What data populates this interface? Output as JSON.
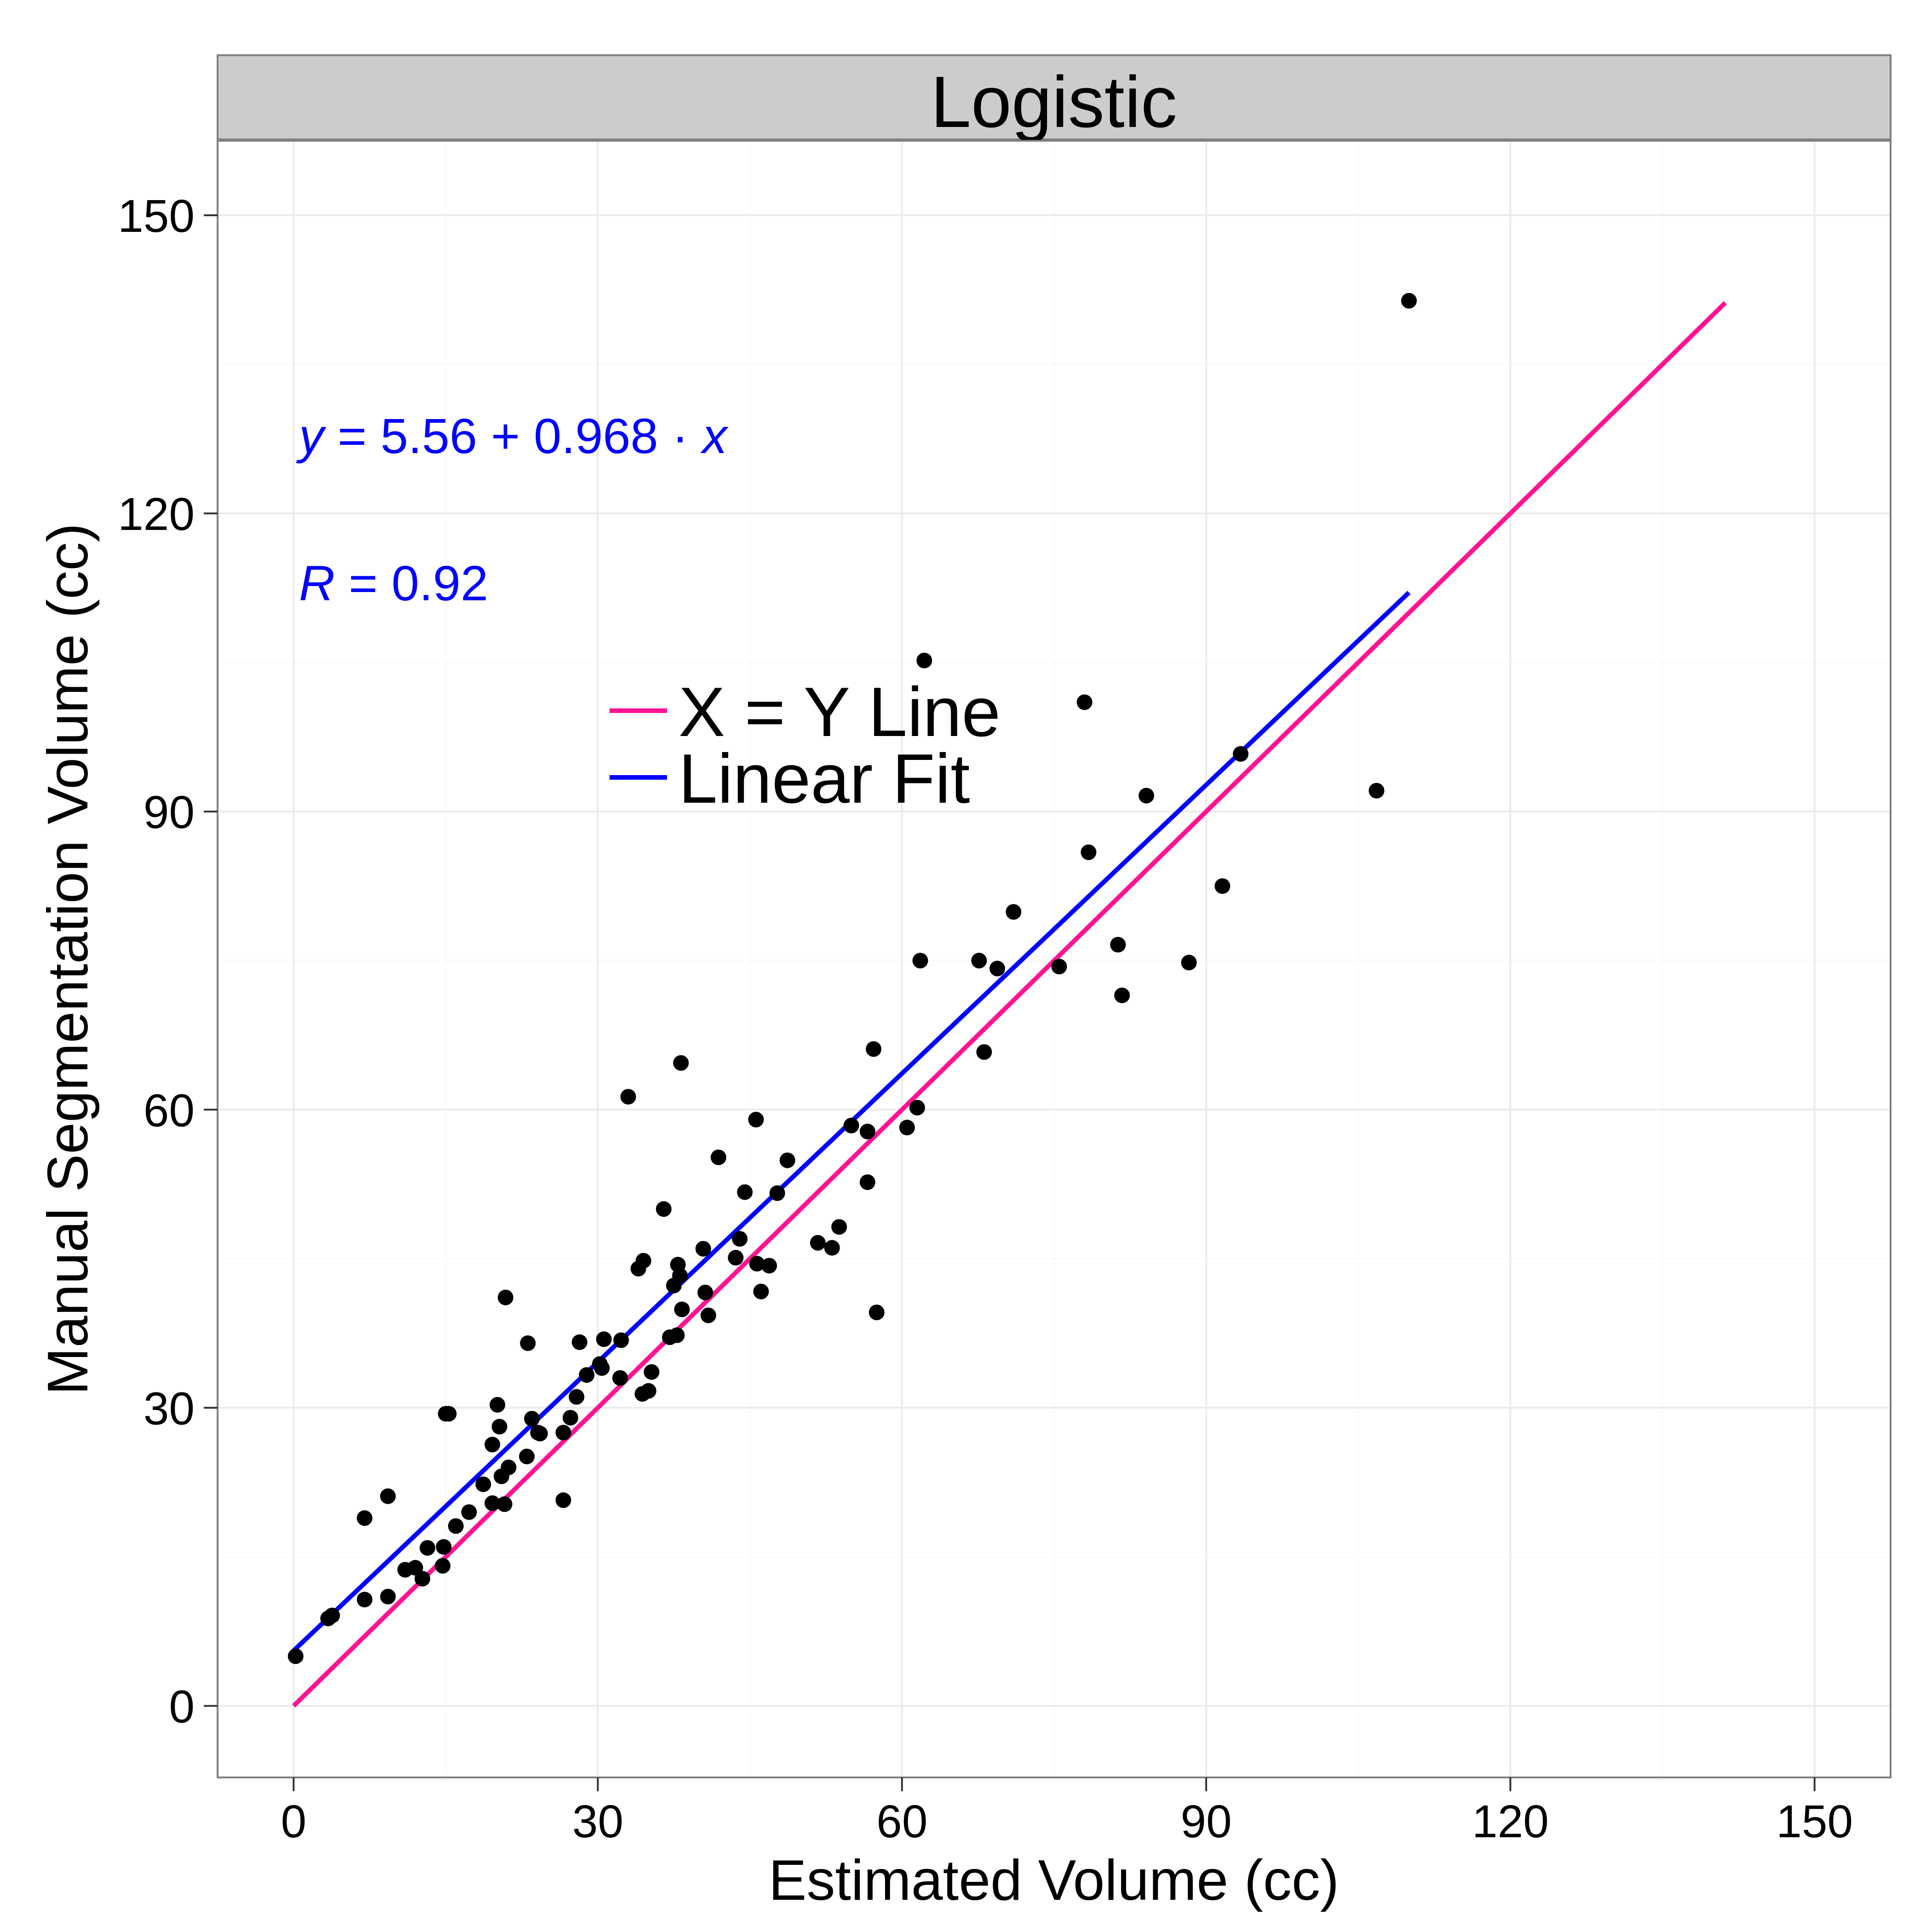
{
  "chart_data": {
    "type": "scatter",
    "facet_title": "Logistic",
    "xlabel": "Estimated Volume (cc)",
    "ylabel": "Manual Segmentation Volume (cc)",
    "xlim": [
      -7.5,
      157.5
    ],
    "ylim": [
      -7.2,
      157.5
    ],
    "x_ticks": [
      0,
      30,
      60,
      90,
      120,
      150
    ],
    "y_ticks": [
      0,
      30,
      60,
      90,
      120,
      150
    ],
    "grid": true,
    "legend_position": "inside-center",
    "annotations": {
      "equation": {
        "lhs": "y",
        "eq": " = ",
        "rhs": "5.56 + 0.968 · ",
        "var": "x",
        "color": "#0000FF"
      },
      "r_value": {
        "lhs": "R",
        "eq": " = ",
        "rhs": "0.92",
        "color": "#0000FF"
      }
    },
    "series": [
      {
        "name": "X = Y Line",
        "type": "line",
        "color": "#FF1493",
        "x": [
          0,
          141.2
        ],
        "y": [
          0,
          141.2
        ]
      },
      {
        "name": "Linear Fit",
        "type": "line",
        "color": "#0000FF",
        "x": [
          0,
          110
        ],
        "y": [
          5.56,
          112.04
        ]
      },
      {
        "type": "scatter",
        "color": "#000000",
        "points": [
          [
            0.2,
            5.0
          ],
          [
            3.4,
            8.8
          ],
          [
            3.8,
            9.1
          ],
          [
            7.0,
            18.9
          ],
          [
            7.0,
            10.7
          ],
          [
            9.3,
            21.1
          ],
          [
            9.3,
            11.0
          ],
          [
            11.0,
            13.7
          ],
          [
            12.0,
            13.9
          ],
          [
            12.7,
            12.8
          ],
          [
            13.2,
            15.9
          ],
          [
            14.7,
            14.1
          ],
          [
            14.8,
            16.0
          ],
          [
            15.0,
            29.4
          ],
          [
            15.3,
            29.4
          ],
          [
            16.0,
            18.1
          ],
          [
            17.3,
            19.5
          ],
          [
            18.7,
            22.3
          ],
          [
            19.6,
            26.3
          ],
          [
            19.6,
            20.4
          ],
          [
            20.1,
            30.3
          ],
          [
            20.3,
            28.1
          ],
          [
            20.5,
            23.1
          ],
          [
            20.8,
            20.3
          ],
          [
            20.9,
            41.1
          ],
          [
            21.2,
            24.0
          ],
          [
            23.0,
            25.1
          ],
          [
            23.1,
            36.5
          ],
          [
            23.5,
            28.9
          ],
          [
            24.1,
            27.5
          ],
          [
            24.3,
            27.4
          ],
          [
            26.6,
            27.5
          ],
          [
            26.6,
            20.7
          ],
          [
            27.3,
            29.0
          ],
          [
            27.9,
            31.1
          ],
          [
            28.2,
            36.6
          ],
          [
            28.9,
            33.3
          ],
          [
            30.2,
            34.4
          ],
          [
            30.4,
            34.0
          ],
          [
            30.6,
            36.9
          ],
          [
            32.2,
            33.0
          ],
          [
            32.3,
            36.8
          ],
          [
            33.0,
            61.3
          ],
          [
            34.0,
            44.0
          ],
          [
            34.4,
            31.4
          ],
          [
            34.5,
            44.8
          ],
          [
            35.0,
            31.7
          ],
          [
            35.3,
            33.6
          ],
          [
            36.5,
            50.0
          ],
          [
            37.1,
            37.1
          ],
          [
            37.5,
            42.3
          ],
          [
            37.8,
            37.3
          ],
          [
            37.9,
            44.4
          ],
          [
            38.1,
            43.3
          ],
          [
            38.2,
            64.7
          ],
          [
            38.3,
            39.9
          ],
          [
            40.4,
            46.0
          ],
          [
            40.6,
            41.6
          ],
          [
            40.9,
            39.3
          ],
          [
            41.9,
            55.2
          ],
          [
            43.6,
            45.1
          ],
          [
            44.0,
            47.0
          ],
          [
            44.5,
            51.7
          ],
          [
            45.6,
            59.0
          ],
          [
            45.7,
            44.5
          ],
          [
            46.1,
            41.7
          ],
          [
            46.9,
            44.3
          ],
          [
            47.7,
            51.6
          ],
          [
            48.7,
            54.9
          ],
          [
            51.7,
            46.6
          ],
          [
            53.1,
            46.1
          ],
          [
            53.8,
            48.2
          ],
          [
            55.0,
            58.4
          ],
          [
            56.6,
            52.7
          ],
          [
            56.6,
            57.8
          ],
          [
            57.2,
            66.1
          ],
          [
            57.5,
            39.6
          ],
          [
            60.5,
            58.2
          ],
          [
            61.5,
            60.2
          ],
          [
            61.8,
            75.0
          ],
          [
            62.2,
            105.2
          ],
          [
            67.6,
            75.0
          ],
          [
            68.1,
            65.8
          ],
          [
            69.4,
            74.2
          ],
          [
            71.0,
            79.9
          ],
          [
            75.5,
            74.4
          ],
          [
            78.0,
            101.0
          ],
          [
            78.4,
            85.9
          ],
          [
            81.3,
            76.6
          ],
          [
            81.7,
            71.5
          ],
          [
            84.1,
            91.6
          ],
          [
            88.3,
            74.8
          ],
          [
            91.6,
            82.5
          ],
          [
            93.4,
            95.8
          ],
          [
            106.8,
            92.1
          ],
          [
            110.0,
            141.4
          ]
        ]
      }
    ]
  }
}
